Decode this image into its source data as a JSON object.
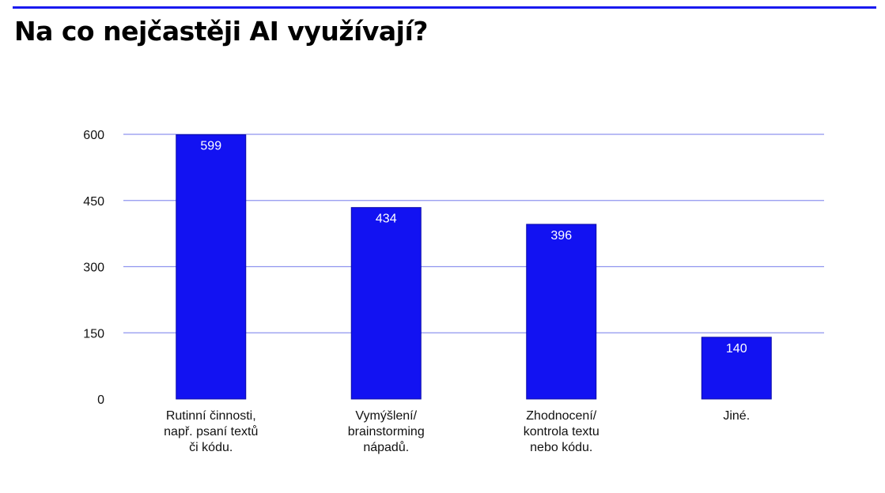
{
  "header": {
    "title": "Na co nejčastěji AI využívají?",
    "rule_color": "#1a1aef"
  },
  "chart_data": {
    "type": "bar",
    "title": "",
    "xlabel": "",
    "ylabel": "",
    "categories": [
      [
        "Rutinní činnosti,",
        "např. psaní textů",
        "či kódu."
      ],
      [
        "Vymýšlení/",
        "brainstorming",
        "nápadů."
      ],
      [
        "Zhodnocení/",
        "kontrola textu",
        "nebo kódu."
      ],
      [
        "Jiné."
      ]
    ],
    "values": [
      599,
      434,
      396,
      140
    ],
    "data_labels": [
      "599",
      "434",
      "396",
      "140"
    ],
    "ylim": [
      0,
      600
    ],
    "yticks": [
      0,
      150,
      300,
      450,
      600
    ],
    "grid": true,
    "legend": "none",
    "colors": {
      "bar": "#1212f2",
      "bar_edge": "#0a0aa8",
      "grid": "#8f94ef"
    }
  }
}
